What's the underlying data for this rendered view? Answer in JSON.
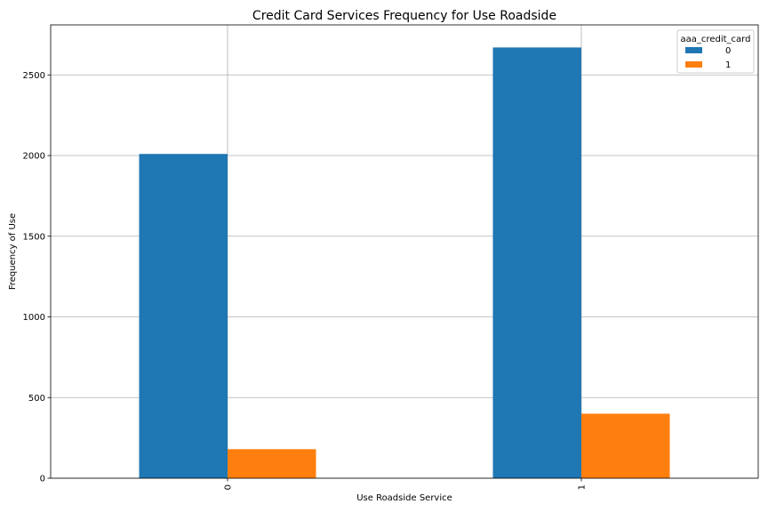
{
  "chart_data": {
    "type": "bar",
    "title": "Credit Card Services Frequency for Use Roadside",
    "xlabel": "Use Roadside Service",
    "ylabel": "Frequency of Use",
    "categories": [
      "0",
      "1"
    ],
    "series": [
      {
        "name": "0",
        "values": [
          2010,
          2670
        ],
        "color": "#1f77b4"
      },
      {
        "name": "1",
        "values": [
          180,
          400
        ],
        "color": "#ff7f0e"
      }
    ],
    "ylim": [
      0,
      2810
    ],
    "yticks": [
      0,
      500,
      1000,
      1500,
      2000,
      2500
    ],
    "grid": true,
    "legend": {
      "title": "aaa_credit_card",
      "placement": "top-right"
    }
  }
}
